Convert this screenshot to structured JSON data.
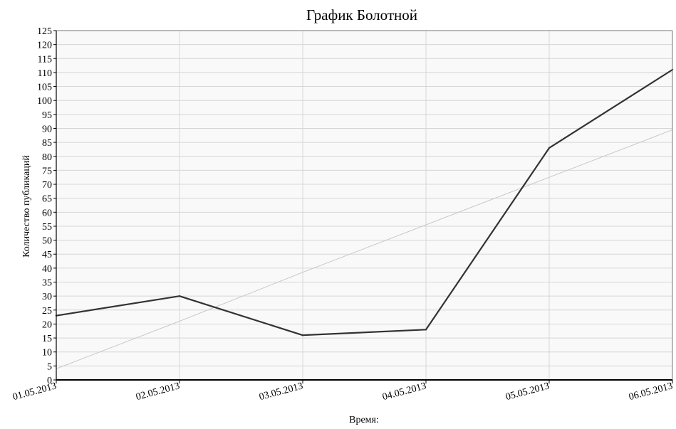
{
  "chart_data": {
    "type": "line",
    "title": "График Болотной",
    "xlabel": "Время:",
    "ylabel": "Количество публикаций",
    "categories": [
      "01.05.2013",
      "02.05.2013",
      "03.05.2013",
      "04.05.2013",
      "05.05.2013",
      "06.05.2013"
    ],
    "series": [
      {
        "values": [
          23,
          30,
          16,
          18,
          83,
          111
        ],
        "color": "#333333"
      }
    ],
    "trendline": {
      "values": [
        4,
        21,
        38.5,
        55.5,
        72.5,
        89.5
      ],
      "color": "#c8c8c8"
    },
    "ylim": [
      0,
      125
    ],
    "ytick_step": 5,
    "grid": true,
    "plot_background": "#f9f9f9",
    "grid_color": "#d6d6d6"
  }
}
